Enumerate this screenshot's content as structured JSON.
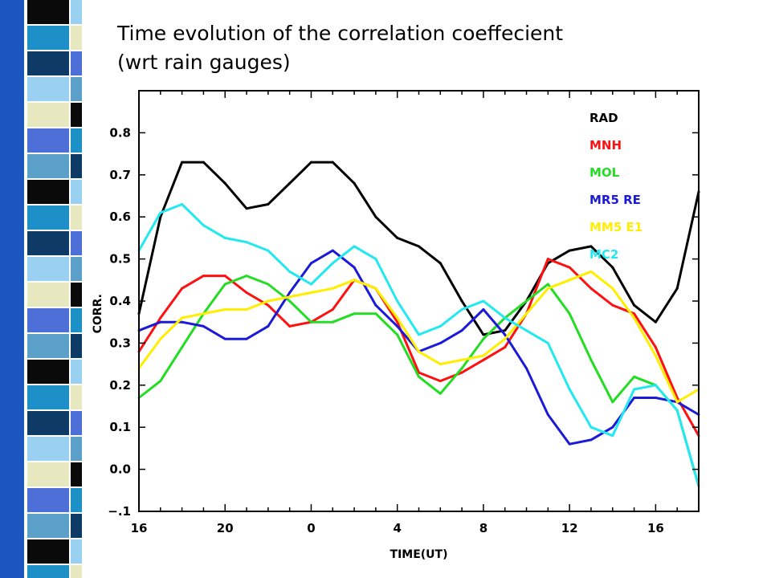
{
  "slide": {
    "title_line1": "Time evolution of the correlation coeffecient",
    "title_line2": "(wrt rain gauges)"
  },
  "decoration": {
    "strip_colors": [
      "#0a0a0a",
      "#1e90c8",
      "#0e3a66",
      "#9ad0f0",
      "#e8e8c0",
      "#4f6fd8",
      "#5aa0c8"
    ]
  },
  "chart_data": {
    "type": "line",
    "xlabel": "TIME(UT)",
    "ylabel": "CORR.",
    "x_hours": [
      16,
      17,
      18,
      19,
      20,
      21,
      22,
      23,
      24,
      25,
      26,
      27,
      28,
      29,
      30,
      31,
      32,
      33,
      34,
      35,
      36,
      37,
      38,
      39,
      40,
      41,
      42
    ],
    "x_tick_values": [
      16,
      20,
      24,
      28,
      32,
      36,
      40
    ],
    "x_tick_labels": [
      "16",
      "20",
      "0",
      "4",
      "8",
      "12",
      "16"
    ],
    "xlim": [
      16,
      42
    ],
    "ylim": [
      -0.1,
      0.9
    ],
    "y_ticks": [
      -0.1,
      0.0,
      0.1,
      0.2,
      0.3,
      0.4,
      0.5,
      0.6,
      0.7,
      0.8
    ],
    "y_tick_labels": [
      "−.1",
      "0.0",
      "0.1",
      "0.2",
      "0.3",
      "0.4",
      "0.5",
      "0.6",
      "0.7",
      "0.8"
    ],
    "grid": false,
    "legend_position": "top-right",
    "series": [
      {
        "name": "RAD",
        "color": "#000000",
        "values": [
          0.37,
          0.6,
          0.73,
          0.73,
          0.68,
          0.62,
          0.63,
          0.68,
          0.73,
          0.73,
          0.68,
          0.6,
          0.55,
          0.53,
          0.49,
          0.4,
          0.32,
          0.33,
          0.4,
          0.49,
          0.52,
          0.53,
          0.48,
          0.39,
          0.35,
          0.43,
          0.66
        ]
      },
      {
        "name": "MNH",
        "color": "#ff1010",
        "values": [
          0.28,
          0.36,
          0.43,
          0.46,
          0.46,
          0.42,
          0.39,
          0.34,
          0.35,
          0.38,
          0.45,
          0.43,
          0.35,
          0.23,
          0.21,
          0.23,
          0.26,
          0.29,
          0.37,
          0.5,
          0.48,
          0.43,
          0.39,
          0.37,
          0.29,
          0.17,
          0.08
        ]
      },
      {
        "name": "MOL",
        "color": "#22dd22",
        "values": [
          0.17,
          0.21,
          0.29,
          0.37,
          0.44,
          0.46,
          0.44,
          0.4,
          0.35,
          0.35,
          0.37,
          0.37,
          0.32,
          0.22,
          0.18,
          0.24,
          0.31,
          0.36,
          0.4,
          0.44,
          0.37,
          0.26,
          0.16,
          0.22,
          0.2,
          0.14,
          -0.04
        ]
      },
      {
        "name": "MR5 RE",
        "color": "#1a1ad8",
        "values": [
          0.33,
          0.35,
          0.35,
          0.34,
          0.31,
          0.31,
          0.34,
          0.42,
          0.49,
          0.52,
          0.48,
          0.39,
          0.34,
          0.28,
          0.3,
          0.33,
          0.38,
          0.32,
          0.24,
          0.13,
          0.06,
          0.07,
          0.1,
          0.17,
          0.17,
          0.16,
          0.13
        ]
      },
      {
        "name": "MM5 E1",
        "color": "#ffee00",
        "values": [
          0.24,
          0.31,
          0.36,
          0.37,
          0.38,
          0.38,
          0.4,
          0.41,
          0.42,
          0.43,
          0.45,
          0.43,
          0.36,
          0.28,
          0.25,
          0.26,
          0.27,
          0.31,
          0.37,
          0.43,
          0.45,
          0.47,
          0.43,
          0.36,
          0.27,
          0.16,
          0.19
        ]
      },
      {
        "name": "MC2",
        "color": "#22e8f0",
        "values": [
          0.52,
          0.61,
          0.63,
          0.58,
          0.55,
          0.54,
          0.52,
          0.47,
          0.44,
          0.49,
          0.53,
          0.5,
          0.4,
          0.32,
          0.34,
          0.38,
          0.4,
          0.36,
          0.33,
          0.3,
          0.19,
          0.1,
          0.08,
          0.19,
          0.2,
          0.14,
          -0.04
        ]
      }
    ]
  }
}
